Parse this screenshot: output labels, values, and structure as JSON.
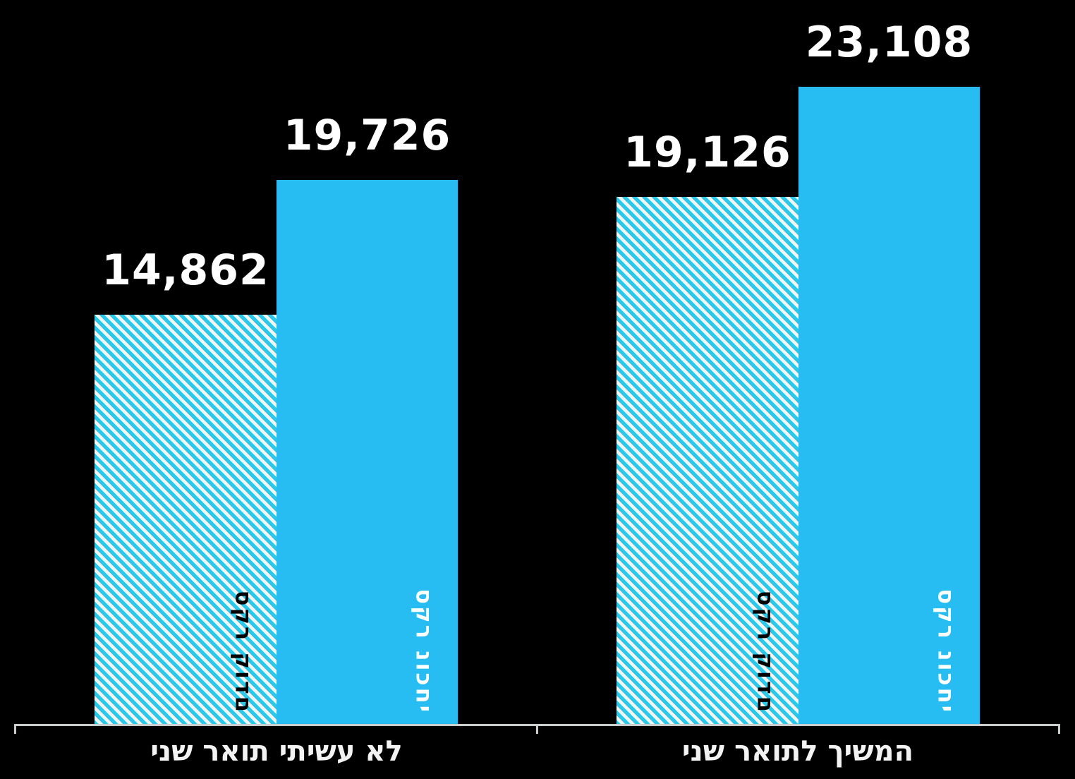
{
  "chart_data": {
    "type": "bar",
    "title": "",
    "xlabel": "",
    "ylabel": "",
    "grid": false,
    "background_color": "#000000",
    "direction": "rtl",
    "ylim": [
      0,
      26000
    ],
    "categories": [
      "לא עשיתי תואר שני",
      "המשיך לתואר שני"
    ],
    "series": [
      {
        "name": "סקר קודם",
        "pattern": "diagonal-hatch",
        "values": [
          14862,
          19126
        ],
        "display_values": [
          "14,862",
          "19,126"
        ],
        "label_color": "#000000"
      },
      {
        "name": "סקר נוכחי",
        "pattern": "solid",
        "values": [
          19726,
          23108
        ],
        "display_values": [
          "19,726",
          "23,108"
        ],
        "label_color": "#FFFFFF"
      }
    ],
    "legend_position": "inside-bars-rotated"
  },
  "colors": {
    "solid_bar": "#27BDF2",
    "hatch_stripe": "#2CC8EA",
    "hatch_background": "#F2F7F5",
    "axis": "#C9CDCC",
    "value_label": "#FFFFFF",
    "category_label": "#F3F3F3"
  }
}
